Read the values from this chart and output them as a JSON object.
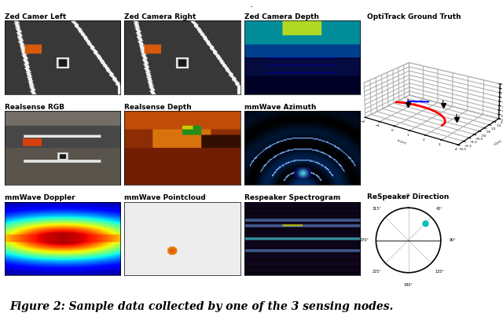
{
  "title": "Figure 2: Sample data collected by one of the 3 sensing nodes.",
  "background_color": "#ffffff",
  "labels": {
    "zed_left": "Zed Camer Left",
    "zed_right": "Zed Camera Right",
    "zed_depth": "Zed Camera Depth",
    "optitrack": "OptiTrack Ground Truth",
    "realsense_rgb": "Realsense RGB",
    "realsense_depth": "Realsense Depth",
    "mmwave_azimuth": "mmWave Azimuth",
    "mmwave_doppler": "mmWave Doppler",
    "mmwave_pointcloud": "mmWave Pointcloud",
    "respeaker_spectro": "Respeaker Spectrogram",
    "respeaker_dir": "ReSpeaker Direction"
  },
  "fig_width": 6.4,
  "fig_height": 4.07
}
